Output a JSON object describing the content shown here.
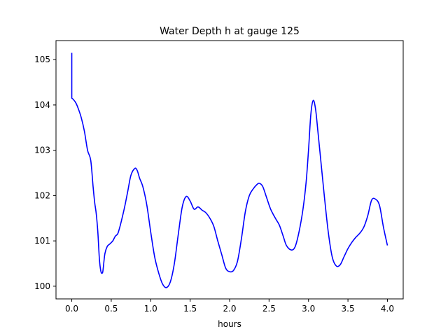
{
  "chart_data": {
    "type": "line",
    "title": "Water Depth h at gauge 125",
    "xlabel": "hours",
    "ylabel": "",
    "xlim": [
      -0.2,
      4.2
    ],
    "ylim": [
      99.72,
      105.42
    ],
    "xticks": [
      0.0,
      0.5,
      1.0,
      1.5,
      2.0,
      2.5,
      3.0,
      3.5,
      4.0
    ],
    "xtick_labels": [
      "0.0",
      "0.5",
      "1.0",
      "1.5",
      "2.0",
      "2.5",
      "3.0",
      "3.5",
      "4.0"
    ],
    "yticks": [
      100,
      101,
      102,
      103,
      104,
      105
    ],
    "ytick_labels": [
      "100",
      "101",
      "102",
      "103",
      "104",
      "105"
    ],
    "grid": false,
    "series": [
      {
        "color": "#0000ff",
        "x": [
          0.0,
          0.0,
          0.0,
          0.02,
          0.05,
          0.08,
          0.12,
          0.16,
          0.2,
          0.24,
          0.27,
          0.29,
          0.31,
          0.33,
          0.35,
          0.37,
          0.39,
          0.4,
          0.42,
          0.45,
          0.48,
          0.52,
          0.55,
          0.58,
          0.6,
          0.63,
          0.67,
          0.71,
          0.75,
          0.8,
          0.83,
          0.86,
          0.9,
          0.95,
          1.0,
          1.05,
          1.1,
          1.15,
          1.2,
          1.25,
          1.3,
          1.35,
          1.4,
          1.45,
          1.5,
          1.55,
          1.6,
          1.65,
          1.7,
          1.75,
          1.8,
          1.85,
          1.9,
          1.95,
          2.0,
          2.05,
          2.1,
          2.15,
          2.2,
          2.25,
          2.3,
          2.35,
          2.38,
          2.42,
          2.47,
          2.52,
          2.58,
          2.63,
          2.68,
          2.72,
          2.78,
          2.83,
          2.88,
          2.93,
          2.97,
          3.0,
          3.03,
          3.06,
          3.09,
          3.12,
          3.16,
          3.2,
          3.25,
          3.3,
          3.35,
          3.4,
          3.45,
          3.5,
          3.55,
          3.6,
          3.65,
          3.7,
          3.75,
          3.8,
          3.85,
          3.9,
          3.95,
          4.0
        ],
        "y": [
          105.15,
          104.15,
          104.15,
          104.12,
          104.05,
          103.93,
          103.72,
          103.42,
          103.0,
          102.78,
          102.2,
          101.85,
          101.6,
          101.2,
          100.6,
          100.32,
          100.3,
          100.42,
          100.72,
          100.88,
          100.93,
          101.0,
          101.1,
          101.15,
          101.25,
          101.45,
          101.75,
          102.1,
          102.45,
          102.6,
          102.55,
          102.38,
          102.2,
          101.8,
          101.2,
          100.65,
          100.3,
          100.05,
          99.97,
          100.1,
          100.5,
          101.15,
          101.75,
          101.98,
          101.88,
          101.7,
          101.75,
          101.68,
          101.62,
          101.5,
          101.32,
          101.0,
          100.7,
          100.4,
          100.32,
          100.35,
          100.55,
          101.05,
          101.65,
          102.0,
          102.15,
          102.25,
          102.27,
          102.2,
          101.95,
          101.7,
          101.5,
          101.35,
          101.1,
          100.9,
          100.8,
          100.87,
          101.2,
          101.7,
          102.3,
          103.0,
          103.8,
          104.1,
          103.9,
          103.4,
          102.7,
          102.0,
          101.2,
          100.65,
          100.45,
          100.47,
          100.65,
          100.83,
          100.97,
          101.08,
          101.17,
          101.3,
          101.55,
          101.9,
          101.92,
          101.78,
          101.3,
          100.9
        ]
      }
    ]
  }
}
